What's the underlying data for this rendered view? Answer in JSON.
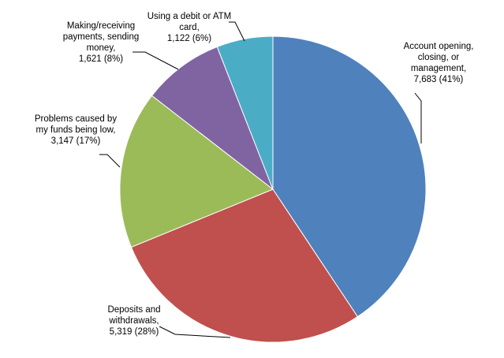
{
  "chart_data": {
    "type": "pie",
    "title": "",
    "slices": [
      {
        "name": "Account opening, closing, or management",
        "value": 7683,
        "percent": 41,
        "color": "#4F81BD",
        "label_lines": [
          "Account opening,",
          "closing, or",
          "management,",
          "7,683 (41%)"
        ]
      },
      {
        "name": "Deposits and withdrawals",
        "value": 5319,
        "percent": 28,
        "color": "#C0504D",
        "label_lines": [
          "Deposits and",
          "withdrawals,",
          "5,319 (28%)"
        ]
      },
      {
        "name": "Problems caused by my funds being low",
        "value": 3147,
        "percent": 17,
        "color": "#9BBB59",
        "label_lines": [
          "Problems caused by",
          "my funds being low,",
          "3,147 (17%)"
        ]
      },
      {
        "name": "Making/receiving payments, sending money",
        "value": 1621,
        "percent": 8,
        "color": "#8064A2",
        "label_lines": [
          "Making/receiving",
          "payments, sending",
          "money,",
          "1,621 (8%)"
        ]
      },
      {
        "name": "Using a debit or ATM card",
        "value": 1122,
        "percent": 6,
        "color": "#4BACC6",
        "label_lines": [
          "Using a debit or ATM",
          "card,",
          "1,122 (6%)"
        ]
      }
    ]
  }
}
